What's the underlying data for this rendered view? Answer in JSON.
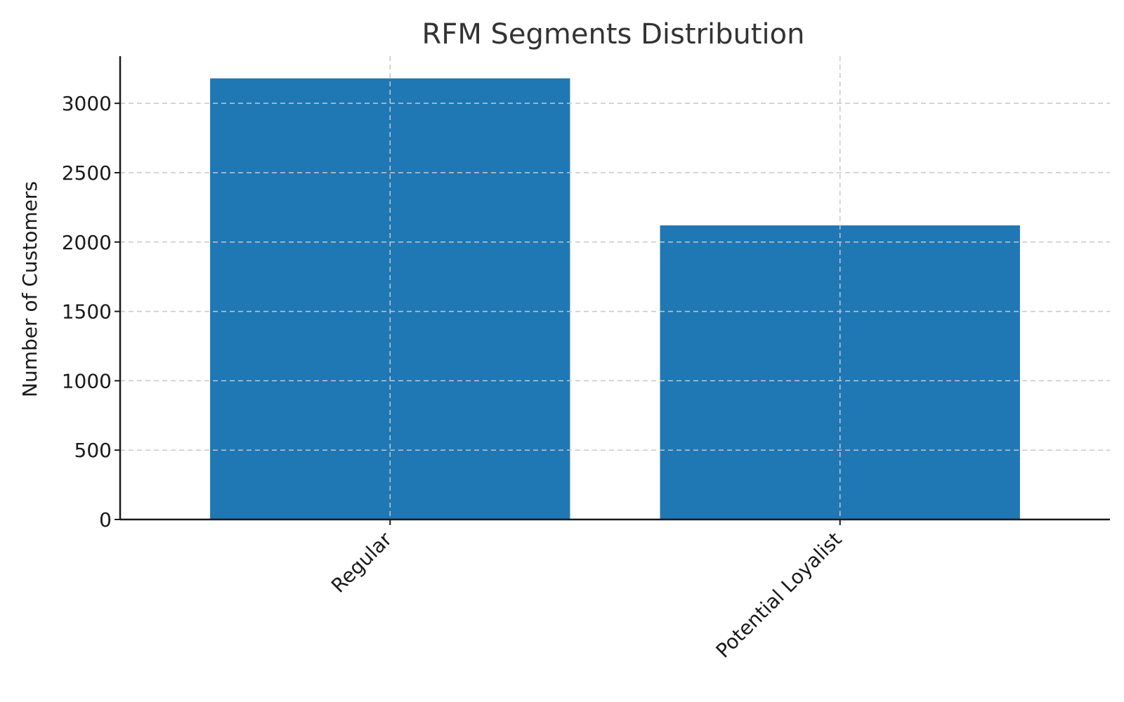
{
  "chart_data": {
    "type": "bar",
    "title": "RFM Segments Distribution",
    "xlabel": "",
    "ylabel": "Number of Customers",
    "categories": [
      "Regular",
      "Potential Loyalist"
    ],
    "values": [
      3180,
      2120
    ],
    "ylim": [
      0,
      3340
    ],
    "yticks": [
      0,
      500,
      1000,
      1500,
      2000,
      2500,
      3000
    ],
    "ytick_labels": [
      "0",
      "500",
      "1000",
      "1500",
      "2000",
      "2500",
      "3000"
    ],
    "bar_color": "#1f77b4",
    "grid": true,
    "grid_style": "dashed",
    "legend": "none",
    "xtick_rotation": 45
  }
}
